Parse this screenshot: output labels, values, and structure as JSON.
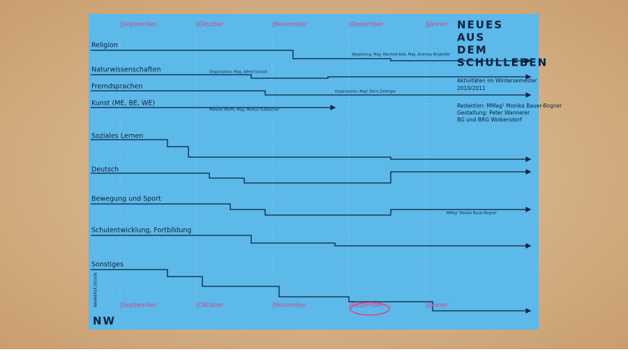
{
  "poster": {
    "months_top": [
      "|September",
      "|Oktober",
      "|November",
      "|Dezember",
      "|Jänner"
    ],
    "months_bottom": [
      "|September",
      "|Oktober",
      "|November",
      "|Dezember",
      "|Jänner"
    ],
    "title": [
      "NEUES",
      "AUS",
      "DEM",
      "SCHULLEBEN"
    ],
    "subtitle": [
      "Aktivitäten im Wintersemester",
      "2010/2011"
    ],
    "credits": [
      "Redaktion: MMag² Monika Bauer-Bogner",
      "Gestaltung: Peter Wannerer",
      "BG und BRG Wolkersdorf"
    ],
    "subjects": [
      "Religion",
      "Naturwissenschaften",
      "Fremdsprachen",
      "Kunst (ME, BE, WE)",
      "Soziales Lernen",
      "Deutsch",
      "Bewegung und Sport",
      "Schulentwicklung, Fortbildung",
      "Sonstiges"
    ],
    "events": [
      "Begleitung: Mag. Manfred Kolb, Mag. Andreas Ringhofer",
      "Organisation: Mag. Alfred Schock",
      "Organisation: Mag² Doris Zeillinger",
      "Melanie Wurth, Mag. Markus Sulzbacher",
      "MMag² Monika Bauer-Bogner"
    ],
    "logo": "NW",
    "logo_caption": "WANNERER DESIGN"
  }
}
